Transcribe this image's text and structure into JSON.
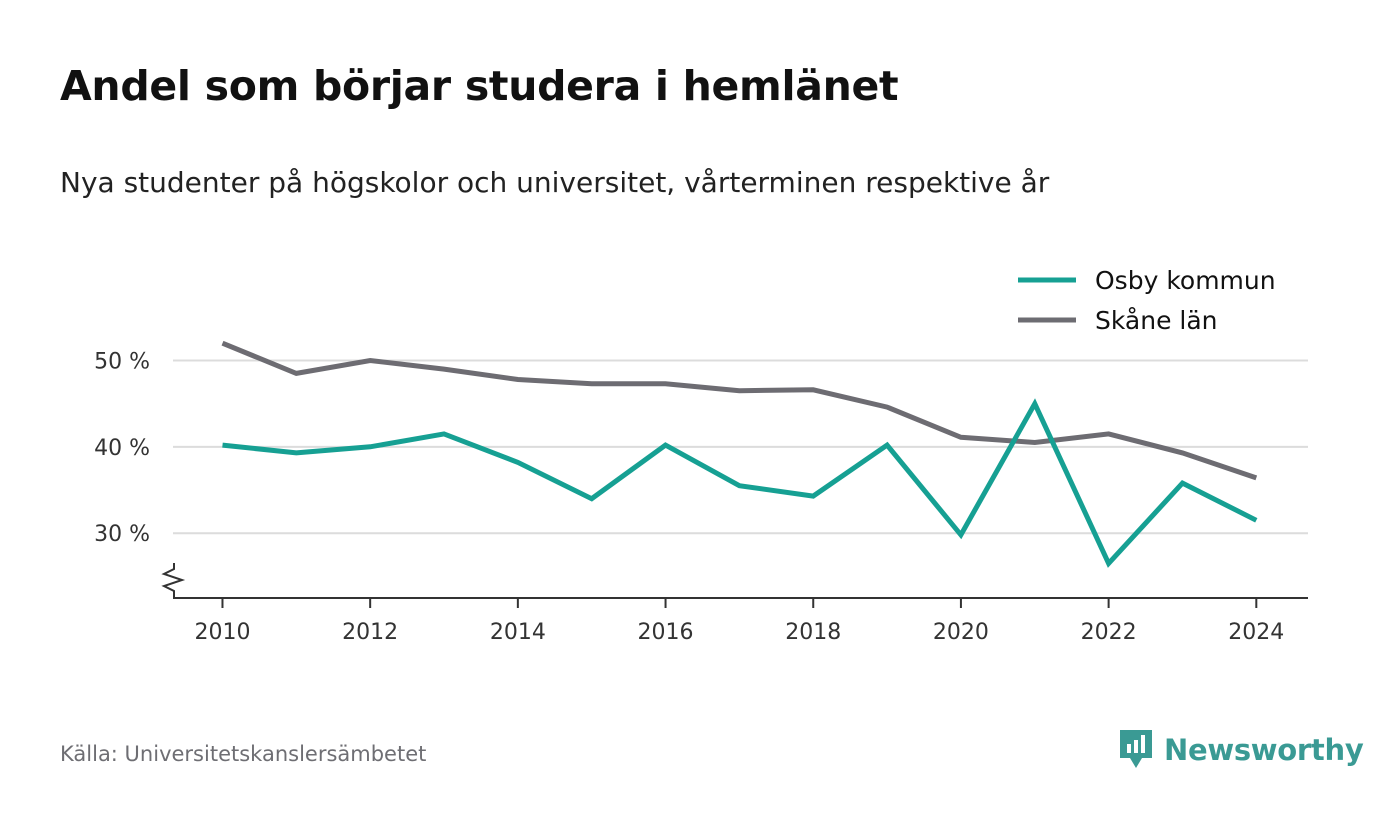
{
  "header": {
    "title": "Andel som börjar studera i hemlänet",
    "subtitle": "Nya studenter på högskolor och universitet, vårterminen respektive år"
  },
  "footer": {
    "source": "Källa: Universitetskanslersämbetet",
    "brand": "Newsworthy",
    "brand_icon": "newsworthy-logo-icon",
    "brand_color": "#3a9a94"
  },
  "chart_data": {
    "type": "line",
    "title": "Andel som börjar studera i hemlänet",
    "subtitle": "Nya studenter på högskolor och universitet, vårterminen respektive år",
    "xlabel": "",
    "ylabel": "",
    "x": [
      2010,
      2011,
      2012,
      2013,
      2014,
      2015,
      2016,
      2017,
      2018,
      2019,
      2020,
      2021,
      2022,
      2023,
      2024
    ],
    "x_tick_labels": [
      "2010",
      "2012",
      "2014",
      "2016",
      "2018",
      "2020",
      "2022",
      "2024"
    ],
    "y_ticks": [
      30,
      40,
      50
    ],
    "y_tick_labels": [
      "30 %",
      "40 %",
      "50 %"
    ],
    "ylim": [
      22.5,
      57
    ],
    "xlim": [
      2009.33,
      2024.7
    ],
    "y_axis_break": true,
    "grid": true,
    "legend_position": "top-right",
    "series": [
      {
        "name": "Osby kommun",
        "color": "#16a093",
        "values": [
          40.2,
          39.3,
          40.0,
          41.5,
          38.2,
          34.0,
          40.2,
          35.5,
          34.3,
          40.2,
          29.8,
          45.0,
          26.5,
          35.8,
          31.5
        ]
      },
      {
        "name": "Skåne län",
        "color": "#6d6c72",
        "values": [
          52.0,
          48.5,
          50.0,
          49.0,
          47.8,
          47.3,
          47.3,
          46.5,
          46.6,
          44.6,
          41.1,
          40.5,
          41.5,
          39.3,
          36.4
        ]
      }
    ]
  }
}
